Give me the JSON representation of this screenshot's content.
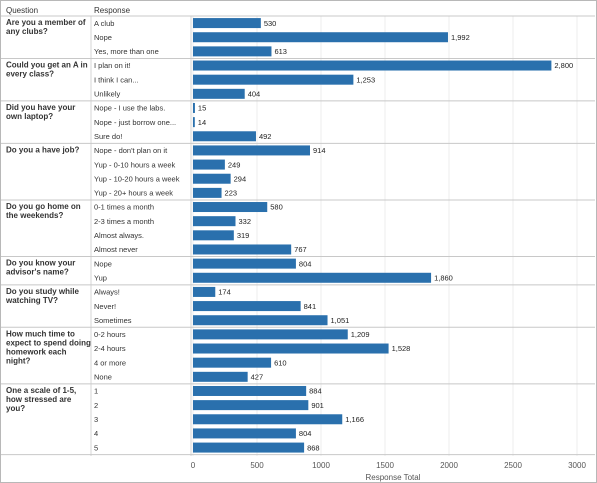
{
  "headers": {
    "question": "Question",
    "response": "Response"
  },
  "chart_data": {
    "type": "bar",
    "orientation": "horizontal",
    "xlabel": "Response Total",
    "xlim": [
      0,
      3000
    ],
    "xticks": [
      0,
      500,
      1000,
      1500,
      2000,
      2500,
      3000
    ],
    "bar_color": "#2a70ad",
    "groups": [
      {
        "question": [
          "Are you a member of",
          "any clubs?"
        ],
        "responses": [
          "A club",
          "Nope",
          "Yes, more than one"
        ],
        "values": [
          530,
          1992,
          613
        ]
      },
      {
        "question": [
          "Could you get an A in",
          "every class?"
        ],
        "responses": [
          "I plan on it!",
          "I think I can...",
          "Unlikely"
        ],
        "values": [
          2800,
          1253,
          404
        ]
      },
      {
        "question": [
          "Did you have your",
          "own laptop?"
        ],
        "responses": [
          "Nope - I use the labs.",
          "Nope - just borrow one...",
          "Sure do!"
        ],
        "values": [
          15,
          14,
          492
        ]
      },
      {
        "question": [
          "Do you a have job?"
        ],
        "responses": [
          "Nope - don't plan on it",
          "Yup - 0-10 hours a week",
          "Yup - 10-20 hours a week",
          "Yup - 20+ hours a week"
        ],
        "values": [
          914,
          249,
          294,
          223
        ]
      },
      {
        "question": [
          "Do you go home on",
          "the weekends?"
        ],
        "responses": [
          "0-1 times a month",
          "2-3 times a month",
          "Almost always.",
          "Almost never"
        ],
        "values": [
          580,
          332,
          319,
          767
        ]
      },
      {
        "question": [
          "Do you know your",
          "advisor's name?"
        ],
        "responses": [
          "Nope",
          "Yup"
        ],
        "values": [
          804,
          1860
        ]
      },
      {
        "question": [
          "Do you study while",
          "watching TV?"
        ],
        "responses": [
          "Always!",
          "Never!",
          "Sometimes"
        ],
        "values": [
          174,
          841,
          1051
        ]
      },
      {
        "question": [
          "How much time to",
          "expect to spend doing",
          "homework each",
          "night?"
        ],
        "responses": [
          "0-2 hours",
          "2-4 hours",
          "4 or more",
          "None"
        ],
        "values": [
          1209,
          1528,
          610,
          427
        ]
      },
      {
        "question": [
          "One a scale of 1-5,",
          "how stressed are",
          "you?"
        ],
        "responses": [
          "1",
          "2",
          "3",
          "4",
          "5"
        ],
        "values": [
          884,
          901,
          1166,
          804,
          868
        ]
      }
    ]
  }
}
